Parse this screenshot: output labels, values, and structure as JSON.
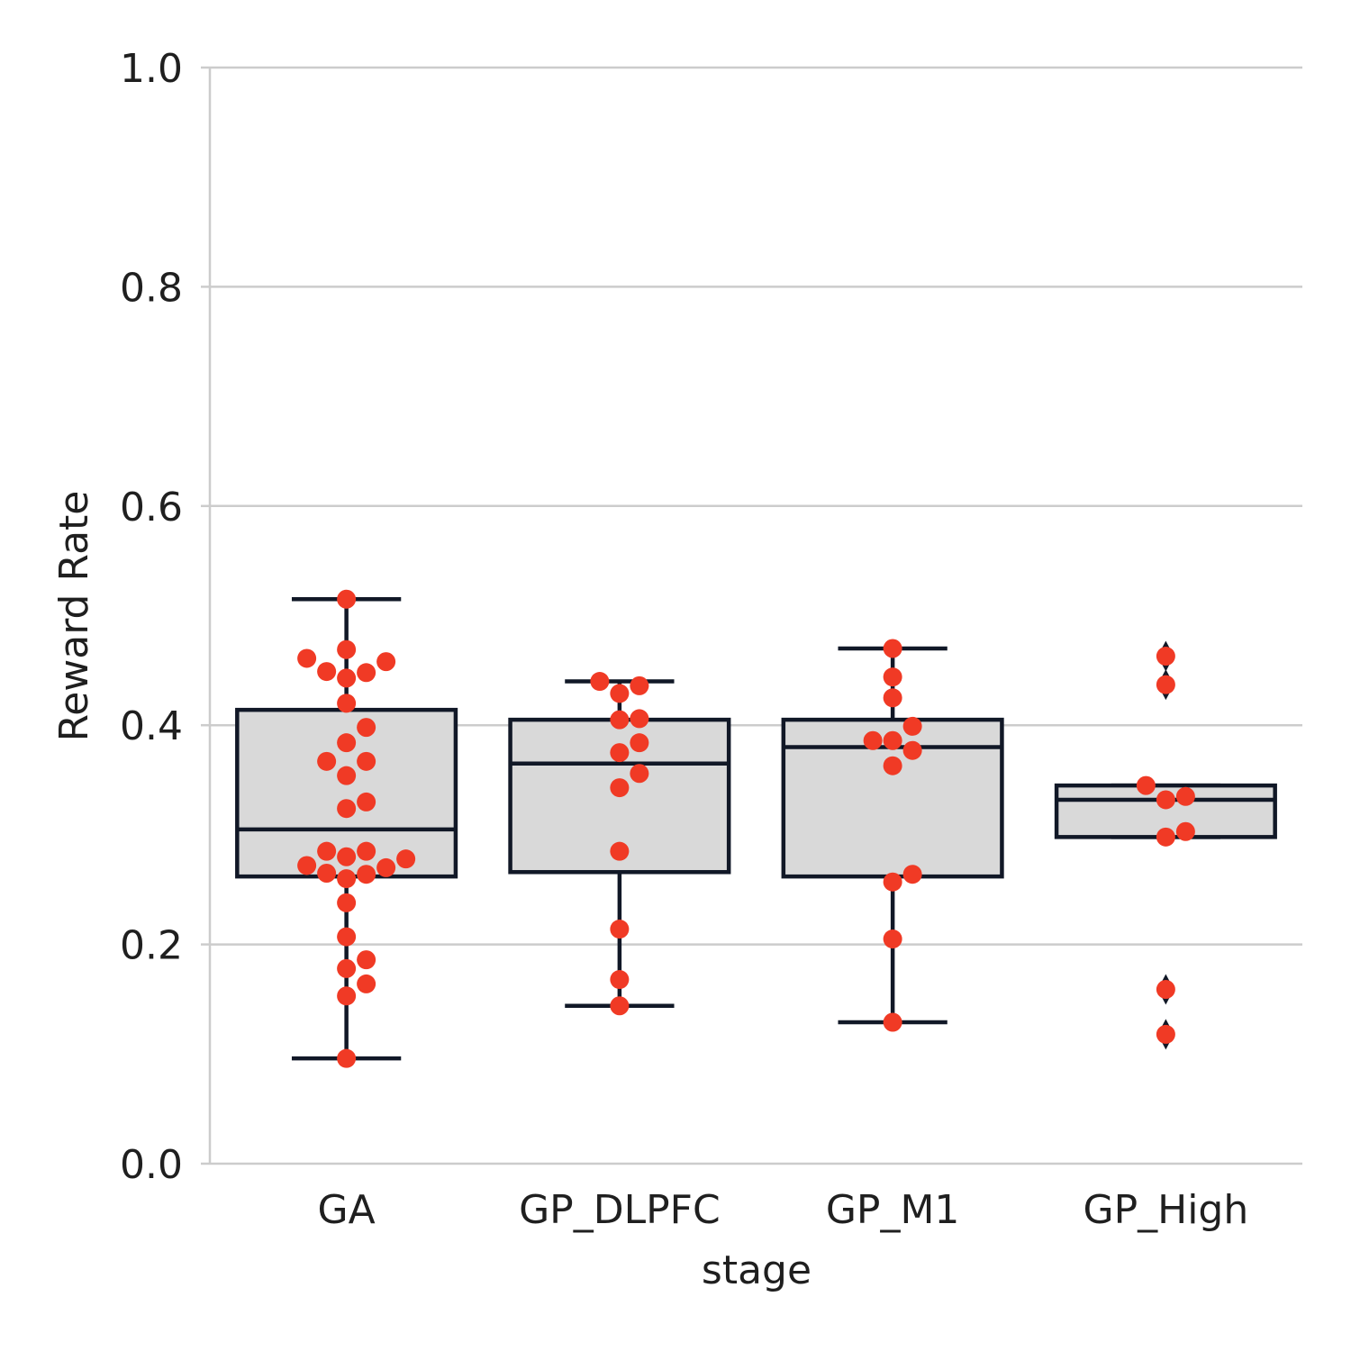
{
  "chart_data": {
    "type": "box",
    "xlabel": "stage",
    "ylabel": "Reward Rate",
    "ylim": [
      0.0,
      1.0
    ],
    "yticks": [
      "0.0",
      "0.2",
      "0.4",
      "0.6",
      "0.8",
      "1.0"
    ],
    "grid": "horizontal",
    "colors": {
      "box_fill": "#d9d9d9",
      "box_edge": "#111827",
      "points": "#f03a25",
      "grid": "#cccccc"
    },
    "categories": [
      "GA",
      "GP_DLPFC",
      "GP_M1",
      "GP_High"
    ],
    "boxes": [
      {
        "category": "GA",
        "whisker_low": 0.096,
        "q1": 0.262,
        "median": 0.305,
        "q3": 0.414,
        "whisker_high": 0.515,
        "outliers": []
      },
      {
        "category": "GP_DLPFC",
        "whisker_low": 0.144,
        "q1": 0.266,
        "median": 0.365,
        "q3": 0.405,
        "whisker_high": 0.44,
        "outliers": []
      },
      {
        "category": "GP_M1",
        "whisker_low": 0.129,
        "q1": 0.262,
        "median": 0.38,
        "q3": 0.405,
        "whisker_high": 0.47,
        "outliers": []
      },
      {
        "category": "GP_High",
        "whisker_low": 0.298,
        "q1": 0.298,
        "median": 0.332,
        "q3": 0.345,
        "whisker_high": 0.345,
        "outliers": [
          0.463,
          0.437,
          0.159,
          0.118
        ]
      }
    ],
    "points": [
      {
        "category": "GA",
        "values": [
          0.515,
          0.469,
          0.461,
          0.458,
          0.449,
          0.448,
          0.443,
          0.42,
          0.398,
          0.384,
          0.367,
          0.367,
          0.354,
          0.33,
          0.324,
          0.285,
          0.285,
          0.28,
          0.278,
          0.272,
          0.27,
          0.265,
          0.264,
          0.26,
          0.238,
          0.207,
          0.186,
          0.178,
          0.164,
          0.153,
          0.096
        ]
      },
      {
        "category": "GP_DLPFC",
        "values": [
          0.44,
          0.436,
          0.429,
          0.406,
          0.405,
          0.384,
          0.375,
          0.356,
          0.343,
          0.285,
          0.214,
          0.168,
          0.144
        ]
      },
      {
        "category": "GP_M1",
        "values": [
          0.47,
          0.444,
          0.425,
          0.399,
          0.386,
          0.386,
          0.377,
          0.363,
          0.264,
          0.257,
          0.205,
          0.129
        ]
      },
      {
        "category": "GP_High",
        "values": [
          0.463,
          0.437,
          0.345,
          0.335,
          0.332,
          0.303,
          0.298,
          0.159,
          0.118
        ]
      }
    ]
  }
}
